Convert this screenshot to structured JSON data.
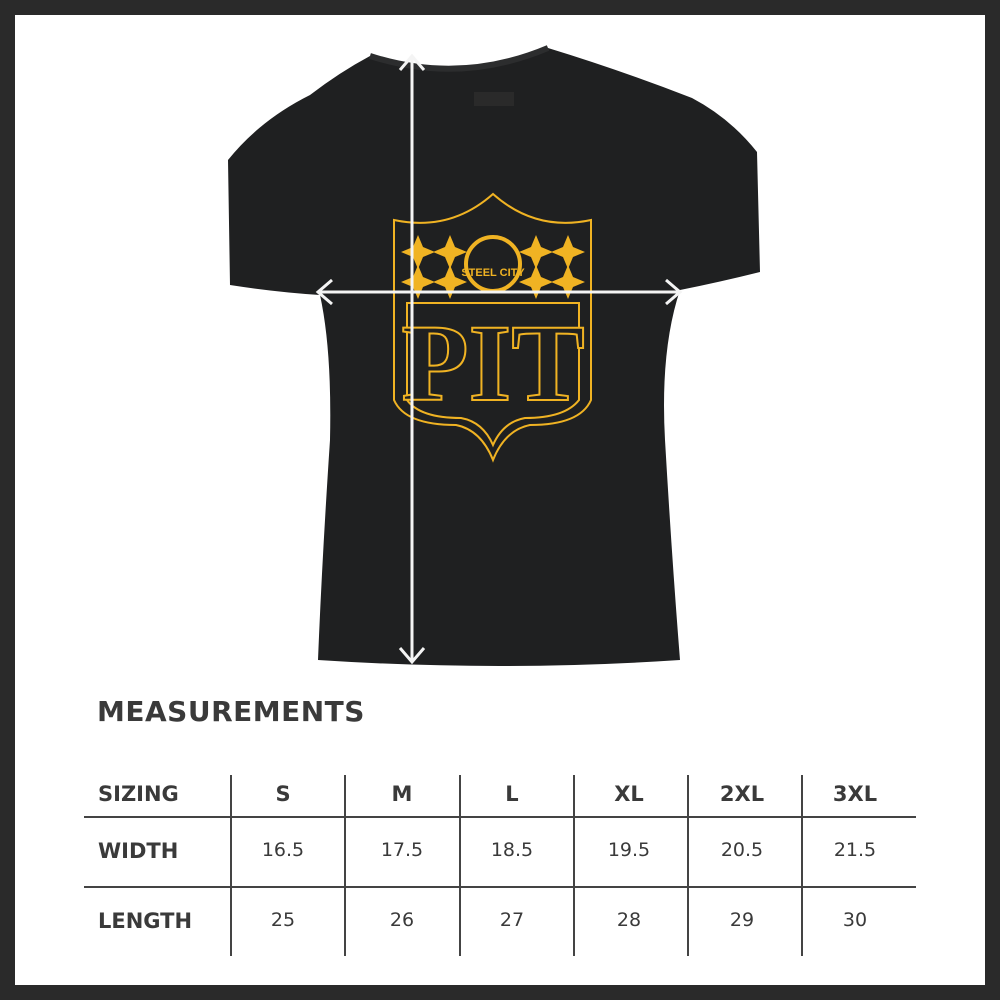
{
  "graphic": {
    "logo_top_text": "STEEL CITY",
    "logo_main_text": "PIT",
    "shirt_color": "#1f2021",
    "logo_color": "#f0b323",
    "arrow_color": "#ffffff"
  },
  "measurements": {
    "title": "MEASUREMENTS",
    "header_label": "SIZING",
    "sizes": [
      "S",
      "M",
      "L",
      "XL",
      "2XL",
      "3XL"
    ],
    "rows": [
      {
        "label": "WIDTH",
        "values": [
          "16.5",
          "17.5",
          "18.5",
          "19.5",
          "20.5",
          "21.5"
        ]
      },
      {
        "label": "LENGTH",
        "values": [
          "25",
          "26",
          "27",
          "28",
          "29",
          "30"
        ]
      }
    ]
  }
}
